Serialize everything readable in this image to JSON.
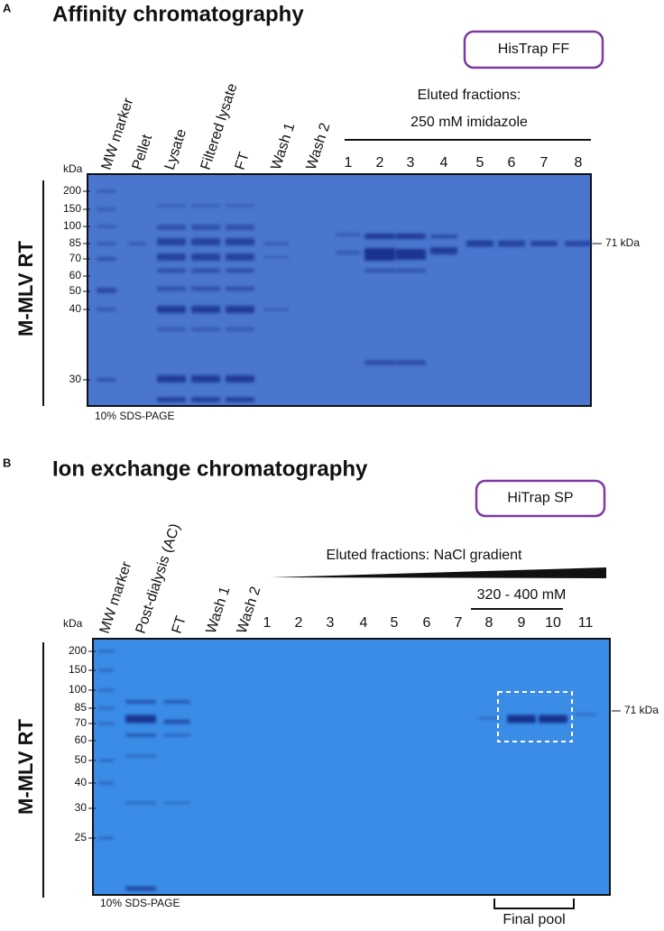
{
  "panels": [
    {
      "letter": "A",
      "title": "Affinity chromatography",
      "column": "HisTrap FF",
      "lanes": [
        "MW marker",
        "Pellet",
        "Lysate",
        "Filtered lysate",
        "FT",
        "Wash 1",
        "Wash 2"
      ],
      "eluted_label": [
        "Eluted fractions:",
        "250 mM imidazole"
      ],
      "fractions": [
        "1",
        "2",
        "3",
        "4",
        "5",
        "6",
        "7",
        "8"
      ],
      "kda_label": "kDa",
      "markers": [
        "200",
        "150",
        "100",
        "85",
        "70",
        "60",
        "50",
        "40",
        "30"
      ],
      "protein": "M-MLV RT",
      "band_label": "71 kDa",
      "gel": "10% SDS-PAGE"
    },
    {
      "letter": "B",
      "title": "Ion exchange chromatography",
      "column": "HiTrap SP",
      "lanes": [
        "MW marker",
        "Post-dialysis (AC)",
        "FT",
        "Wash 1",
        "Wash 2"
      ],
      "eluted_label": [
        "Eluted fractions: NaCl gradient"
      ],
      "range": "320 - 400 mM",
      "fractions": [
        "1",
        "2",
        "3",
        "4",
        "5",
        "6",
        "7",
        "8",
        "9",
        "10",
        "11"
      ],
      "kda_label": "kDa",
      "markers": [
        "200",
        "150",
        "100",
        "85",
        "70",
        "60",
        "50",
        "40",
        "30",
        "25"
      ],
      "protein": "M-MLV RT",
      "band_label": "71 kDa",
      "gel": "10% SDS-PAGE",
      "pool": "Final pool"
    }
  ]
}
